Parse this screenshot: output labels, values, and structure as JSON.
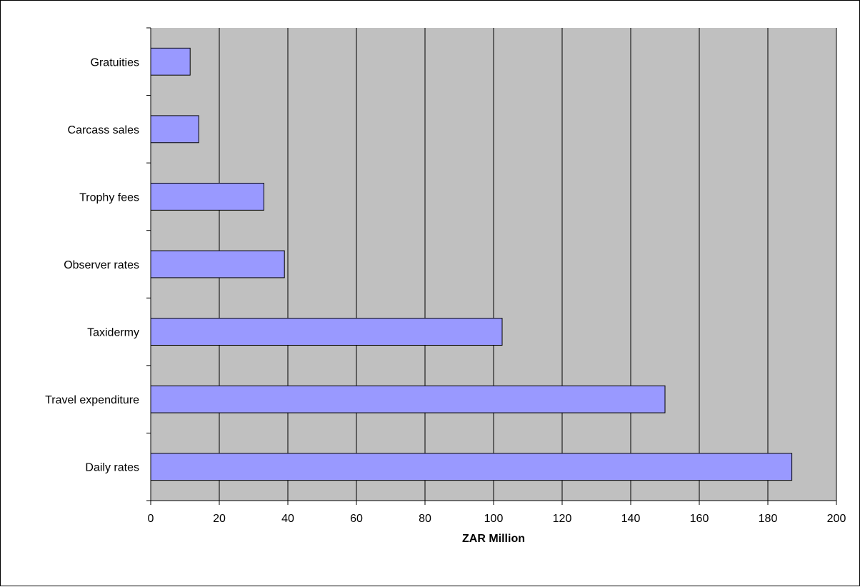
{
  "chart_data": {
    "type": "bar",
    "orientation": "horizontal",
    "categories": [
      "Gratuities",
      "Carcass sales",
      "Trophy fees",
      "Observer rates",
      "Taxidermy",
      "Travel expenditure",
      "Daily rates"
    ],
    "values": [
      11.5,
      14,
      33,
      39,
      102.5,
      150,
      187
    ],
    "title": "",
    "xlabel": "ZAR Million",
    "ylabel": "",
    "xlim": [
      0,
      200
    ],
    "xticks": [
      "0",
      "20",
      "40",
      "60",
      "80",
      "100",
      "120",
      "140",
      "160",
      "180",
      "200"
    ],
    "grid": "vertical",
    "legend": "none",
    "colors": {
      "bar": "#9999ff",
      "plot_background": "#c0c0c0",
      "gridline": "#000000"
    }
  }
}
